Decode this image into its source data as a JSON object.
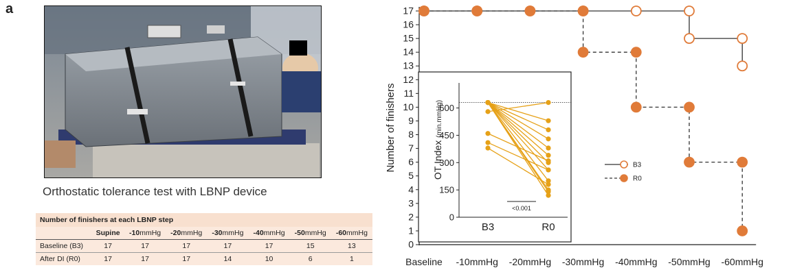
{
  "panel_label": "a",
  "photo_caption": "Orthostatic tolerance test with LBNP device",
  "table": {
    "title": "Number of finishers at each LBNP step",
    "columns": [
      {
        "bold": "Supine",
        "unit": ""
      },
      {
        "bold": "-10",
        "unit": "mmHg"
      },
      {
        "bold": "-20",
        "unit": "mmHg"
      },
      {
        "bold": "-30",
        "unit": "mmHg"
      },
      {
        "bold": "-40",
        "unit": "mmHg"
      },
      {
        "bold": "-50",
        "unit": "mmHg"
      },
      {
        "bold": "-60",
        "unit": "mmHg"
      }
    ],
    "rows": [
      {
        "label": "Baseline (B3)",
        "values": [
          "17",
          "17",
          "17",
          "17",
          "17",
          "15",
          "13"
        ]
      },
      {
        "label": "After DI (R0)",
        "values": [
          "17",
          "17",
          "17",
          "14",
          "10",
          "6",
          "1"
        ]
      }
    ]
  },
  "chart_data": [
    {
      "type": "line",
      "ylabel": "Number of finishers",
      "categories": [
        "Baseline",
        "-10mmHg",
        "-20mmHg",
        "-30mmHg",
        "-40mmHg",
        "-50mmHg",
        "-60mmHg"
      ],
      "ylim": [
        0,
        17
      ],
      "yticks": [
        0,
        1,
        2,
        3,
        4,
        5,
        6,
        7,
        8,
        9,
        10,
        11,
        12,
        13,
        14,
        15,
        16,
        17
      ],
      "series": [
        {
          "name": "B3",
          "style": "solid-open",
          "values": [
            17,
            17,
            17,
            17,
            17,
            15,
            13
          ]
        },
        {
          "name": "R0",
          "style": "dashed-filled",
          "values": [
            17,
            17,
            17,
            14,
            10,
            6,
            1
          ]
        }
      ],
      "legend_position": "right-middle",
      "colors": {
        "marker": "#e07b39",
        "line": "#333333"
      }
    },
    {
      "type": "scatter",
      "ylabel": "OT Index",
      "ylabel_unit": "(min.mmHg)",
      "categories": [
        "B3",
        "R0"
      ],
      "ylim": [
        0,
        700
      ],
      "yticks": [
        0,
        150,
        300,
        450,
        600
      ],
      "reference_line": 630,
      "pairs": [
        [
          630,
          530
        ],
        [
          630,
          480
        ],
        [
          630,
          430
        ],
        [
          630,
          380
        ],
        [
          630,
          340
        ],
        [
          630,
          300
        ],
        [
          630,
          260
        ],
        [
          630,
          200
        ],
        [
          630,
          150
        ],
        [
          630,
          140
        ],
        [
          580,
          630
        ],
        [
          460,
          310
        ],
        [
          410,
          260
        ],
        [
          380,
          180
        ],
        [
          630,
          120
        ]
      ],
      "annotation": "<0.001",
      "colors": {
        "marker": "#e6a118"
      }
    }
  ]
}
